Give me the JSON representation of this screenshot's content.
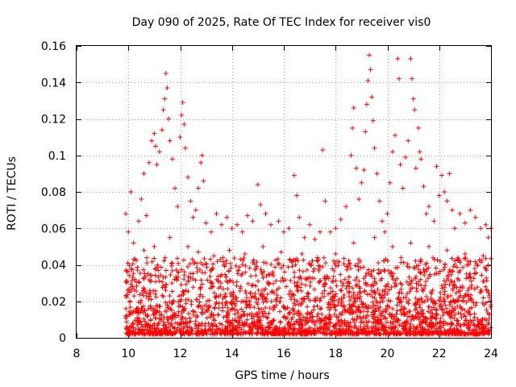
{
  "chart_data": {
    "type": "scatter",
    "title": "Day 090 of 2025, Rate Of TEC Index for receiver vis0",
    "xlabel": "GPS time / hours",
    "ylabel": "ROTI / TECUs",
    "xlim": [
      8,
      24
    ],
    "ylim": [
      0,
      0.16
    ],
    "x_ticks": [
      "8",
      "10",
      "12",
      "14",
      "16",
      "18",
      "20",
      "22",
      "24"
    ],
    "y_ticks": [
      "0",
      "0.02",
      "0.04",
      "0.06",
      "0.08",
      "0.1",
      "0.12",
      "0.14",
      "0.16"
    ],
    "grid": true,
    "marker": "+",
    "series": [
      {
        "color": "#ff0000",
        "points": [
          [
            9.9,
            0.068
          ],
          [
            10.0,
            0.058
          ],
          [
            10.1,
            0.08
          ],
          [
            10.2,
            0.052
          ],
          [
            10.4,
            0.064
          ],
          [
            10.5,
            0.076
          ],
          [
            10.6,
            0.09
          ],
          [
            10.7,
            0.067
          ],
          [
            10.8,
            0.096
          ],
          [
            10.9,
            0.108
          ],
          [
            11.0,
            0.112
          ],
          [
            11.05,
            0.105
          ],
          [
            11.1,
            0.095
          ],
          [
            11.2,
            0.102
          ],
          [
            11.3,
            0.114
          ],
          [
            11.35,
            0.125
          ],
          [
            11.4,
            0.131
          ],
          [
            11.45,
            0.145
          ],
          [
            11.5,
            0.137
          ],
          [
            11.55,
            0.12
          ],
          [
            11.6,
            0.108
          ],
          [
            11.7,
            0.098
          ],
          [
            11.8,
            0.082
          ],
          [
            11.9,
            0.072
          ],
          [
            12.0,
            0.11
          ],
          [
            12.05,
            0.122
          ],
          [
            12.1,
            0.129
          ],
          [
            12.15,
            0.117
          ],
          [
            12.2,
            0.104
          ],
          [
            12.3,
            0.088
          ],
          [
            12.4,
            0.075
          ],
          [
            12.5,
            0.066
          ],
          [
            12.6,
            0.07
          ],
          [
            12.7,
            0.082
          ],
          [
            12.8,
            0.096
          ],
          [
            12.85,
            0.1
          ],
          [
            12.9,
            0.086
          ],
          [
            13.0,
            0.063
          ],
          [
            13.2,
            0.058
          ],
          [
            13.4,
            0.068
          ],
          [
            13.6,
            0.062
          ],
          [
            13.8,
            0.066
          ],
          [
            14.0,
            0.06
          ],
          [
            14.2,
            0.062
          ],
          [
            14.4,
            0.058
          ],
          [
            14.6,
            0.067
          ],
          [
            14.8,
            0.064
          ],
          [
            15.0,
            0.084
          ],
          [
            15.1,
            0.073
          ],
          [
            15.3,
            0.068
          ],
          [
            15.5,
            0.062
          ],
          [
            15.8,
            0.064
          ],
          [
            16.0,
            0.058
          ],
          [
            16.2,
            0.06
          ],
          [
            16.4,
            0.089
          ],
          [
            16.5,
            0.078
          ],
          [
            16.6,
            0.066
          ],
          [
            16.8,
            0.055
          ],
          [
            17.0,
            0.062
          ],
          [
            17.2,
            0.054
          ],
          [
            17.4,
            0.058
          ],
          [
            17.5,
            0.103
          ],
          [
            17.6,
            0.075
          ],
          [
            17.8,
            0.058
          ],
          [
            18.0,
            0.06
          ],
          [
            18.2,
            0.065
          ],
          [
            18.4,
            0.072
          ],
          [
            18.6,
            0.1
          ],
          [
            18.65,
            0.115
          ],
          [
            18.7,
            0.126
          ],
          [
            18.8,
            0.093
          ],
          [
            18.9,
            0.076
          ],
          [
            19.0,
            0.085
          ],
          [
            19.1,
            0.092
          ],
          [
            19.15,
            0.113
          ],
          [
            19.2,
            0.128
          ],
          [
            19.25,
            0.141
          ],
          [
            19.3,
            0.155
          ],
          [
            19.35,
            0.147
          ],
          [
            19.4,
            0.132
          ],
          [
            19.45,
            0.119
          ],
          [
            19.5,
            0.104
          ],
          [
            19.6,
            0.09
          ],
          [
            19.7,
            0.075
          ],
          [
            19.8,
            0.064
          ],
          [
            19.9,
            0.058
          ],
          [
            20.0,
            0.068
          ],
          [
            20.1,
            0.085
          ],
          [
            20.2,
            0.102
          ],
          [
            20.3,
            0.111
          ],
          [
            20.4,
            0.153
          ],
          [
            20.45,
            0.142
          ],
          [
            20.5,
            0.095
          ],
          [
            20.6,
            0.082
          ],
          [
            20.7,
            0.099
          ],
          [
            20.8,
            0.108
          ],
          [
            20.9,
            0.153
          ],
          [
            20.95,
            0.142
          ],
          [
            21.0,
            0.131
          ],
          [
            21.05,
            0.125
          ],
          [
            21.1,
            0.093
          ],
          [
            21.2,
            0.115
          ],
          [
            21.25,
            0.102
          ],
          [
            21.3,
            0.098
          ],
          [
            21.4,
            0.083
          ],
          [
            21.5,
            0.068
          ],
          [
            21.6,
            0.072
          ],
          [
            21.8,
            0.064
          ],
          [
            21.9,
            0.094
          ],
          [
            22.0,
            0.078
          ],
          [
            22.1,
            0.089
          ],
          [
            22.2,
            0.08
          ],
          [
            22.3,
            0.075
          ],
          [
            22.4,
            0.09
          ],
          [
            22.5,
            0.07
          ],
          [
            22.6,
            0.06
          ],
          [
            22.8,
            0.068
          ],
          [
            23.0,
            0.063
          ],
          [
            23.2,
            0.07
          ],
          [
            23.4,
            0.066
          ],
          [
            23.6,
            0.06
          ],
          [
            23.8,
            0.062
          ],
          [
            23.9,
            0.055
          ],
          [
            24.0,
            0.06
          ],
          [
            10.2,
            0.043
          ],
          [
            10.6,
            0.048
          ],
          [
            11.0,
            0.05
          ],
          [
            11.6,
            0.055
          ],
          [
            12.3,
            0.05
          ],
          [
            12.7,
            0.047
          ],
          [
            13.3,
            0.045
          ],
          [
            13.9,
            0.048
          ],
          [
            14.5,
            0.046
          ],
          [
            15.2,
            0.05
          ],
          [
            15.9,
            0.047
          ],
          [
            16.7,
            0.046
          ],
          [
            17.3,
            0.044
          ],
          [
            18.0,
            0.046
          ],
          [
            18.7,
            0.052
          ],
          [
            19.5,
            0.055
          ],
          [
            20.2,
            0.05
          ],
          [
            20.9,
            0.052
          ],
          [
            21.6,
            0.05
          ],
          [
            22.3,
            0.048
          ],
          [
            23.0,
            0.046
          ],
          [
            23.7,
            0.045
          ]
        ]
      }
    ]
  }
}
